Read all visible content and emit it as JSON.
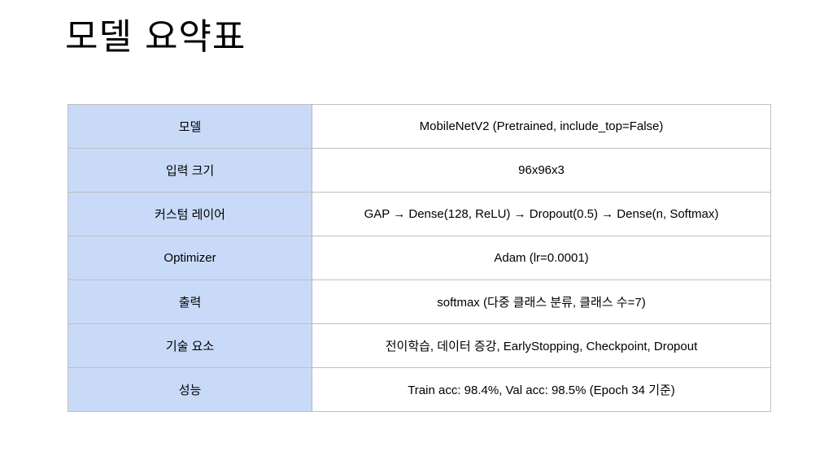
{
  "slide": {
    "title": "모델 요약표"
  },
  "table": {
    "rows": [
      {
        "key": "모델",
        "value": "MobileNetV2 (Pretrained, include_top=False)"
      },
      {
        "key": "입력 크기",
        "value": "96x96x3"
      },
      {
        "key": "커스텀 레이어",
        "value": "GAP → Dense(128, ReLU) → Dropout(0.5) → Dense(n, Softmax)"
      },
      {
        "key": "Optimizer",
        "value": "Adam (lr=0.0001)"
      },
      {
        "key": "출력",
        "value": "softmax (다중 클래스 분류, 클래스 수=7)"
      },
      {
        "key": "기술 요소",
        "value": "전이학습, 데이터 증강, EarlyStopping, Checkpoint, Dropout"
      },
      {
        "key": "성능",
        "value": "Train acc: 98.4%, Val acc: 98.5% (Epoch 34 기준)"
      }
    ]
  },
  "colors": {
    "key_cell_background": "#c9daf8",
    "border": "#bfbfbf"
  }
}
